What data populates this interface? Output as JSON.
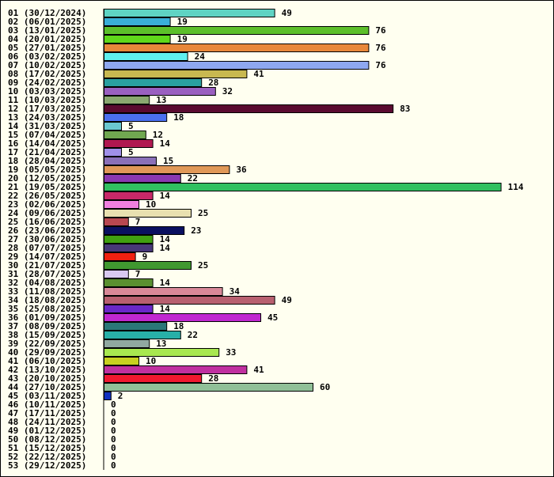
{
  "chart_data": {
    "type": "bar",
    "orientation": "horizontal",
    "title": "",
    "xlabel": "",
    "ylabel": "",
    "xlim": [
      0,
      114
    ],
    "grid": false,
    "legend": "none",
    "categories": [
      "01 (30/12/2024)",
      "02 (06/01/2025)",
      "03 (13/01/2025)",
      "04 (20/01/2025)",
      "05 (27/01/2025)",
      "06 (03/02/2025)",
      "07 (10/02/2025)",
      "08 (17/02/2025)",
      "09 (24/02/2025)",
      "10 (03/03/2025)",
      "11 (10/03/2025)",
      "12 (17/03/2025)",
      "13 (24/03/2025)",
      "14 (31/03/2025)",
      "15 (07/04/2025)",
      "16 (14/04/2025)",
      "17 (21/04/2025)",
      "18 (28/04/2025)",
      "19 (05/05/2025)",
      "20 (12/05/2025)",
      "21 (19/05/2025)",
      "22 (26/05/2025)",
      "23 (02/06/2025)",
      "24 (09/06/2025)",
      "25 (16/06/2025)",
      "26 (23/06/2025)",
      "27 (30/06/2025)",
      "28 (07/07/2025)",
      "29 (14/07/2025)",
      "30 (21/07/2025)",
      "31 (28/07/2025)",
      "32 (04/08/2025)",
      "33 (11/08/2025)",
      "34 (18/08/2025)",
      "35 (25/08/2025)",
      "36 (01/09/2025)",
      "37 (08/09/2025)",
      "38 (15/09/2025)",
      "39 (22/09/2025)",
      "40 (29/09/2025)",
      "41 (06/10/2025)",
      "42 (13/10/2025)",
      "43 (20/10/2025)",
      "44 (27/10/2025)",
      "45 (03/11/2025)",
      "46 (10/11/2025)",
      "47 (17/11/2025)",
      "48 (24/11/2025)",
      "49 (01/12/2025)",
      "50 (08/12/2025)",
      "51 (15/12/2025)",
      "52 (22/12/2025)",
      "53 (29/12/2025)"
    ],
    "values": [
      49,
      19,
      76,
      19,
      76,
      24,
      76,
      41,
      28,
      32,
      13,
      83,
      18,
      5,
      12,
      14,
      5,
      15,
      36,
      22,
      114,
      14,
      10,
      25,
      7,
      23,
      14,
      14,
      9,
      25,
      7,
      14,
      34,
      49,
      14,
      45,
      18,
      22,
      13,
      33,
      10,
      41,
      28,
      60,
      2,
      0,
      0,
      0,
      0,
      0,
      0,
      0,
      0
    ],
    "colors": [
      "#5fd3c3",
      "#3aaed8",
      "#5cbf2a",
      "#5fd81a",
      "#e8873a",
      "#5ff0f0",
      "#8ea8f0",
      "#c8b850",
      "#2aa0a0",
      "#9a60c0",
      "#8aa870",
      "#5a0a30",
      "#4a70f0",
      "#6ac8d0",
      "#70a850",
      "#b01850",
      "#a090e8",
      "#8a70b8",
      "#e09858",
      "#8a38b0",
      "#30c060",
      "#c82868",
      "#f080e0",
      "#e8e0b0",
      "#b84850",
      "#0a1060",
      "#40a010",
      "#483878",
      "#f02010",
      "#409830",
      "#d8c8f0",
      "#5a9030",
      "#d88898",
      "#b86070",
      "#6a28c8",
      "#c028d0",
      "#2a7878",
      "#28b0a8",
      "#90a8a0",
      "#a8e850",
      "#c8d020",
      "#c030a0",
      "#f01830",
      "#90c098",
      "#1030c0",
      "#ffffff",
      "#ffffff",
      "#ffffff",
      "#ffffff",
      "#ffffff",
      "#ffffff",
      "#ffffff",
      "#ffffff"
    ]
  }
}
